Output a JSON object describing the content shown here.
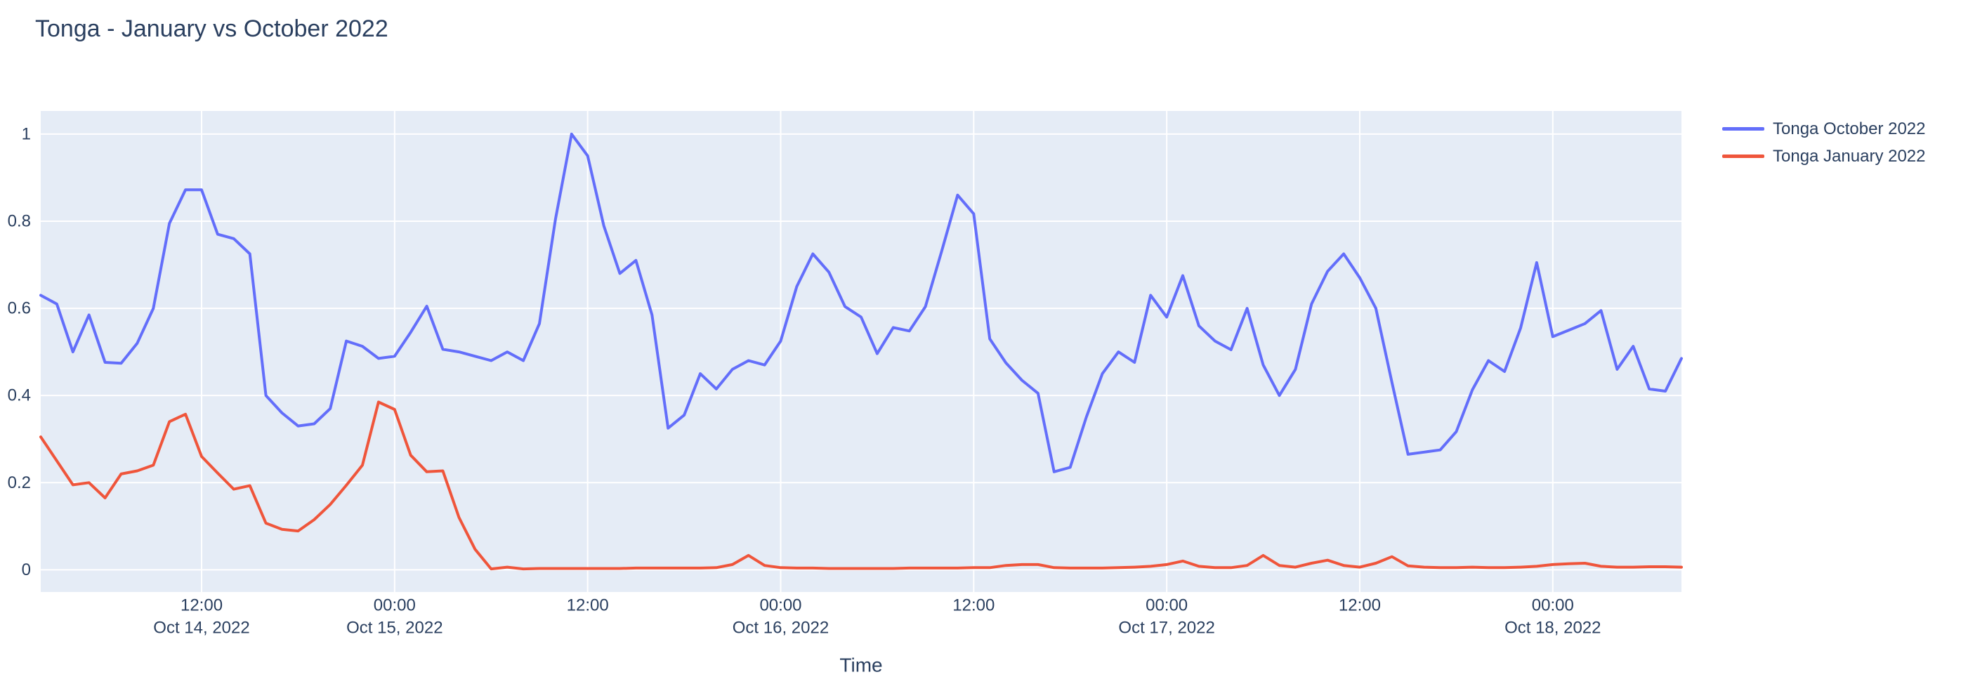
{
  "title": "Tonga - January vs October 2022",
  "colors": {
    "page_background": "#ffffff",
    "plot_background": "#e5ecf6",
    "grid": "#ffffff",
    "text": "#2a3f5f"
  },
  "chart_data": {
    "type": "line",
    "title": "Tonga - January vs October 2022",
    "xlabel": "Time",
    "ylabel": "",
    "grid": true,
    "legend_position": "top-right-outside",
    "x_start": "2022-10-14 02:00",
    "x_step_hours": 1,
    "x_total_hours": 102,
    "ylim": [
      -0.051,
      1.053
    ],
    "yticks": [
      "0",
      "0.2",
      "0.4",
      "0.6",
      "0.8",
      "1"
    ],
    "ytick_values": [
      0,
      0.2,
      0.4,
      0.6,
      0.8,
      1
    ],
    "x_ticks": [
      {
        "hour": 10,
        "time": "12:00",
        "date": "Oct 14, 2022"
      },
      {
        "hour": 22,
        "time": "00:00",
        "date": "Oct 15, 2022"
      },
      {
        "hour": 34,
        "time": "12:00",
        "date": ""
      },
      {
        "hour": 46,
        "time": "00:00",
        "date": "Oct 16, 2022"
      },
      {
        "hour": 58,
        "time": "12:00",
        "date": ""
      },
      {
        "hour": 70,
        "time": "00:00",
        "date": "Oct 17, 2022"
      },
      {
        "hour": 82,
        "time": "12:00",
        "date": ""
      },
      {
        "hour": 94,
        "time": "00:00",
        "date": "Oct 18, 2022"
      }
    ],
    "series": [
      {
        "name": "Tonga October 2022",
        "color": "#636efa",
        "values": [
          0.63,
          0.61,
          0.5,
          0.585,
          0.476,
          0.474,
          0.52,
          0.6,
          0.795,
          0.872,
          0.872,
          0.77,
          0.76,
          0.725,
          0.4,
          0.36,
          0.33,
          0.335,
          0.37,
          0.525,
          0.513,
          0.485,
          0.49,
          0.545,
          0.605,
          0.506,
          0.5,
          0.49,
          0.48,
          0.5,
          0.48,
          0.565,
          0.805,
          1.0,
          0.95,
          0.79,
          0.68,
          0.71,
          0.585,
          0.325,
          0.355,
          0.45,
          0.415,
          0.46,
          0.48,
          0.47,
          0.525,
          0.65,
          0.725,
          0.683,
          0.604,
          0.58,
          0.496,
          0.556,
          0.548,
          0.604,
          0.73,
          0.86,
          0.817,
          0.53,
          0.475,
          0.435,
          0.405,
          0.225,
          0.235,
          0.35,
          0.45,
          0.5,
          0.476,
          0.63,
          0.58,
          0.675,
          0.56,
          0.525,
          0.505,
          0.6,
          0.47,
          0.4,
          0.46,
          0.61,
          0.685,
          0.725,
          0.67,
          0.6,
          0.43,
          0.265,
          0.27,
          0.275,
          0.317,
          0.413,
          0.48,
          0.455,
          0.555,
          0.705,
          0.535,
          0.55,
          0.565,
          0.595,
          0.46,
          0.513,
          0.415,
          0.41,
          0.485
        ]
      },
      {
        "name": "Tonga January 2022",
        "color": "#ef553b",
        "values": [
          0.305,
          0.25,
          0.195,
          0.2,
          0.165,
          0.22,
          0.227,
          0.24,
          0.34,
          0.357,
          0.26,
          0.222,
          0.185,
          0.193,
          0.107,
          0.093,
          0.089,
          0.115,
          0.15,
          0.194,
          0.24,
          0.385,
          0.368,
          0.263,
          0.225,
          0.227,
          0.12,
          0.047,
          0.002,
          0.006,
          0.002,
          0.003,
          0.003,
          0.003,
          0.003,
          0.003,
          0.003,
          0.004,
          0.004,
          0.004,
          0.004,
          0.004,
          0.005,
          0.012,
          0.033,
          0.01,
          0.005,
          0.004,
          0.004,
          0.003,
          0.003,
          0.003,
          0.003,
          0.003,
          0.004,
          0.004,
          0.004,
          0.004,
          0.005,
          0.005,
          0.01,
          0.012,
          0.012,
          0.005,
          0.004,
          0.004,
          0.004,
          0.005,
          0.006,
          0.008,
          0.012,
          0.02,
          0.008,
          0.005,
          0.005,
          0.01,
          0.033,
          0.01,
          0.006,
          0.015,
          0.022,
          0.01,
          0.006,
          0.015,
          0.03,
          0.009,
          0.006,
          0.005,
          0.005,
          0.006,
          0.005,
          0.005,
          0.006,
          0.008,
          0.012,
          0.014,
          0.015,
          0.008,
          0.006,
          0.006,
          0.007,
          0.007,
          0.006
        ]
      }
    ]
  }
}
